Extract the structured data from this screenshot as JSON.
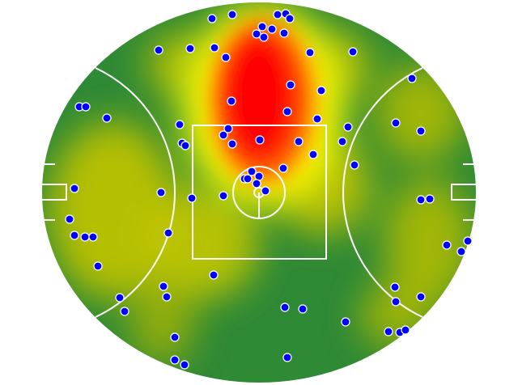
{
  "colors": {
    "background": "#ffffff",
    "field_base": "#2f8a35",
    "heat_low": "#bfc400",
    "heat_mid": "#ffff00",
    "heat_high": "#ff0000",
    "markings": "#ffffff",
    "dot_fill": "#0000ff",
    "dot_stroke": "#ffffff"
  },
  "icons": {
    "dot": "position-dot"
  }
}
